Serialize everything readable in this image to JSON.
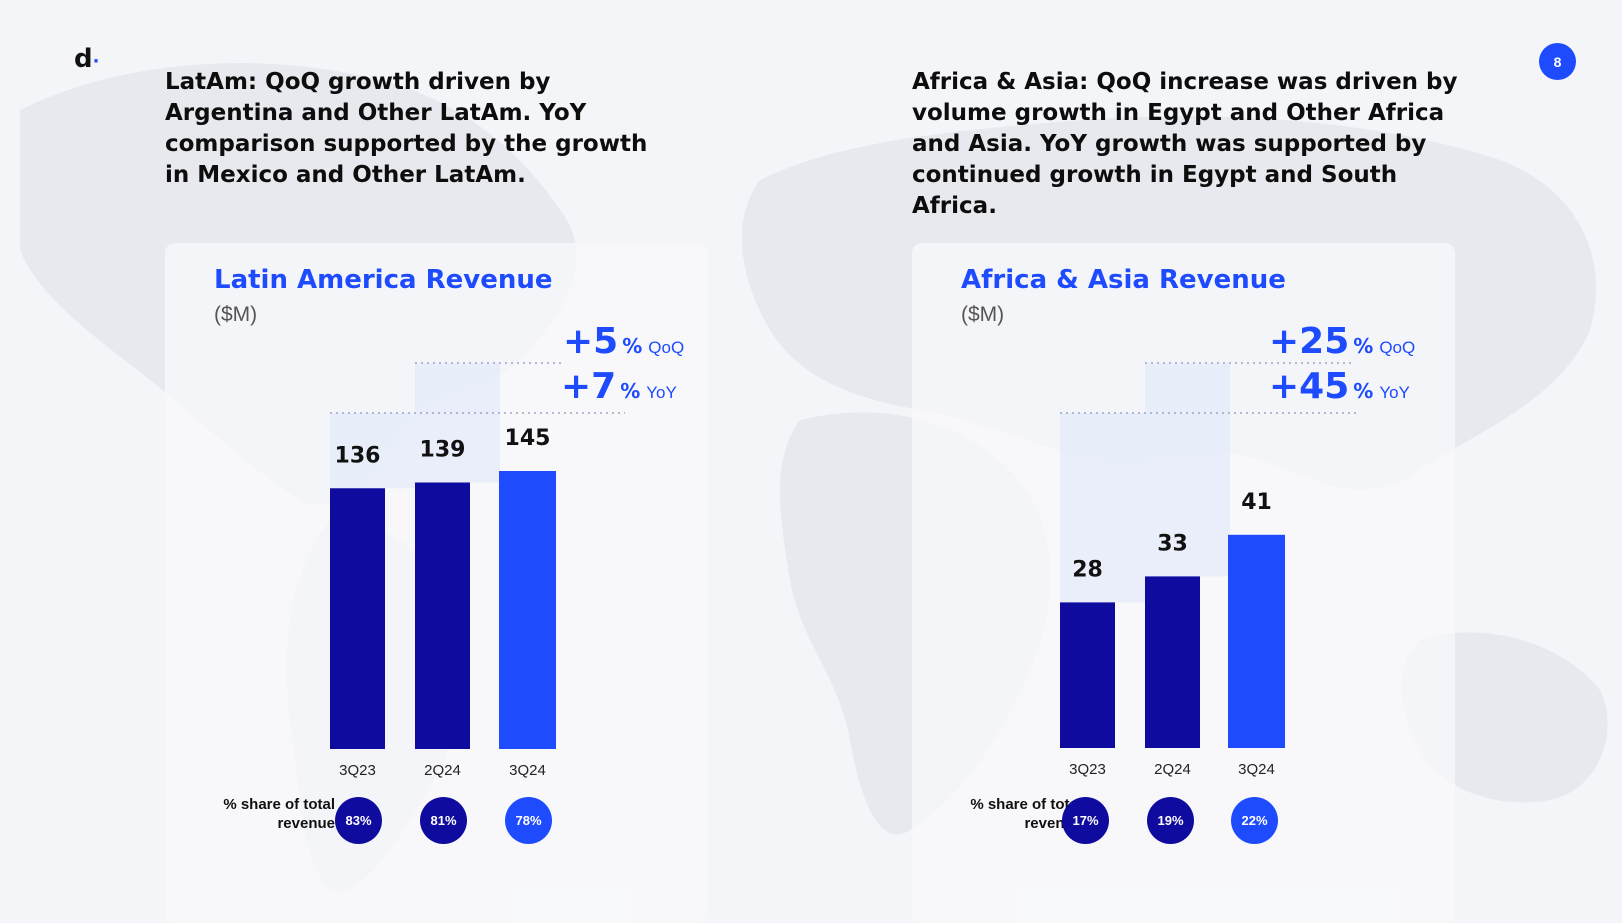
{
  "logo": {
    "text": "d",
    "dot": "·"
  },
  "page_number": "8",
  "colors": {
    "dark_bar": "#0f0b9e",
    "accent": "#1f4bff"
  },
  "left": {
    "headline": "LatAm: QoQ growth driven by Argentina and Other LatAm. YoY comparison supported by the growth in Mexico and Other LatAm.",
    "share_label": "% share of total revenue",
    "share": [
      "83%",
      "81%",
      "78%"
    ]
  },
  "right": {
    "headline": "Africa & Asia: QoQ increase was driven by volume growth in Egypt and Other Africa and Asia. YoY growth was supported by continued growth in Egypt and South Africa.",
    "share_label": "% share of total revenue",
    "share": [
      "17%",
      "19%",
      "22%"
    ]
  },
  "chart_data": [
    {
      "type": "bar",
      "title": "Latin America Revenue",
      "subtitle": "($M)",
      "categories": [
        "3Q23",
        "2Q24",
        "3Q24"
      ],
      "values": [
        136,
        139,
        145
      ],
      "value_labels": [
        "136",
        "139",
        "145"
      ],
      "ylim": [
        0,
        145
      ],
      "growth": [
        {
          "value": "+5",
          "unit": "%",
          "label": "QoQ"
        },
        {
          "value": "+7",
          "unit": "%",
          "label": "YoY"
        }
      ]
    },
    {
      "type": "bar",
      "title": "Africa & Asia Revenue",
      "subtitle": "($M)",
      "categories": [
        "3Q23",
        "2Q24",
        "3Q24"
      ],
      "values": [
        28,
        33,
        41
      ],
      "value_labels": [
        "28",
        "33",
        "41"
      ],
      "ylim": [
        0,
        50
      ],
      "growth": [
        {
          "value": "+25",
          "unit": "%",
          "label": "QoQ"
        },
        {
          "value": "+45",
          "unit": "%",
          "label": "YoY"
        }
      ]
    }
  ]
}
